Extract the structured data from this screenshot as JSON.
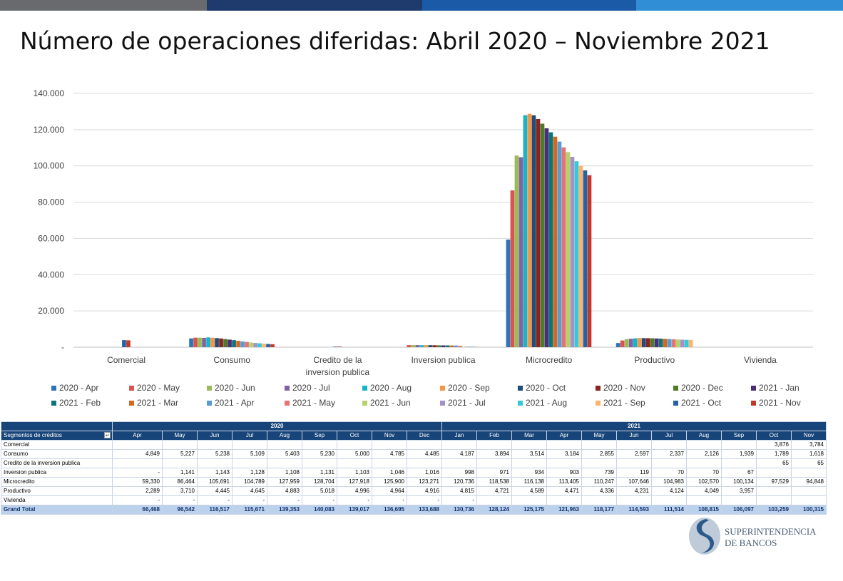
{
  "title": "Número de operaciones diferidas: Abril 2020 – Noviembre 2021",
  "topbar_colors": [
    "#686a6e",
    "#1f3a6d",
    "#1a5aa6",
    "#2f8ed6"
  ],
  "logo": {
    "line1": "SUPERINTENDENCIA",
    "line2": "DE BANCOS"
  },
  "chart_data": {
    "type": "bar",
    "categories": [
      "Comercial",
      "Consumo",
      "Credito de la inversion publica",
      "Inversion publica",
      "Microcredito",
      "Productivo",
      "Vivienda"
    ],
    "ylim": [
      0,
      140000
    ],
    "yticks": [
      "-",
      "20.000",
      "40.000",
      "60.000",
      "80.000",
      "100.000",
      "120.000",
      "140.000"
    ],
    "grid": true,
    "legend_position": "bottom",
    "series": [
      {
        "name": "2020 - Apr",
        "color": "#2e75b6",
        "values": [
          null,
          4849,
          null,
          null,
          59330,
          2289,
          null
        ]
      },
      {
        "name": "2020 - May",
        "color": "#d9534f",
        "values": [
          null,
          5227,
          null,
          1141,
          86464,
          3710,
          null
        ]
      },
      {
        "name": "2020 - Jun",
        "color": "#9bbb59",
        "values": [
          null,
          5238,
          null,
          1143,
          105691,
          4445,
          null
        ]
      },
      {
        "name": "2020 - Jul",
        "color": "#8064a2",
        "values": [
          null,
          5109,
          null,
          1128,
          104789,
          4645,
          null
        ]
      },
      {
        "name": "2020 - Aug",
        "color": "#17b3c6",
        "values": [
          null,
          5403,
          null,
          1108,
          127959,
          4883,
          null
        ]
      },
      {
        "name": "2020 - Sep",
        "color": "#f79646",
        "values": [
          null,
          5230,
          null,
          1131,
          128704,
          5018,
          null
        ]
      },
      {
        "name": "2020 - Oct",
        "color": "#1f4e79",
        "values": [
          null,
          5000,
          null,
          1103,
          127918,
          4996,
          null
        ]
      },
      {
        "name": "2020 - Nov",
        "color": "#8b2323",
        "values": [
          null,
          4785,
          null,
          1046,
          125900,
          4964,
          null
        ]
      },
      {
        "name": "2020 - Dec",
        "color": "#4f7a28",
        "values": [
          null,
          4485,
          null,
          1016,
          123271,
          4916,
          null
        ]
      },
      {
        "name": "2021 - Jan",
        "color": "#4b2e7a",
        "values": [
          null,
          4187,
          null,
          998,
          120736,
          4815,
          null
        ]
      },
      {
        "name": "2021 - Feb",
        "color": "#0e7479",
        "values": [
          null,
          3894,
          null,
          971,
          118538,
          4721,
          null
        ]
      },
      {
        "name": "2021 - Mar",
        "color": "#d2691e",
        "values": [
          null,
          3514,
          null,
          934,
          116138,
          4589,
          null
        ]
      },
      {
        "name": "2021 - Apr",
        "color": "#5b9bd5",
        "values": [
          null,
          3184,
          null,
          903,
          113405,
          4471,
          null
        ]
      },
      {
        "name": "2021 - May",
        "color": "#e57373",
        "values": [
          null,
          2855,
          null,
          739,
          110247,
          4336,
          null
        ]
      },
      {
        "name": "2021 - Jun",
        "color": "#b5d16c",
        "values": [
          null,
          2597,
          null,
          119,
          107646,
          4231,
          null
        ]
      },
      {
        "name": "2021 - Jul",
        "color": "#a491c6",
        "values": [
          null,
          2337,
          null,
          70,
          104983,
          4124,
          null
        ]
      },
      {
        "name": "2021 - Aug",
        "color": "#33cbd9",
        "values": [
          null,
          2126,
          null,
          70,
          102570,
          4049,
          null
        ]
      },
      {
        "name": "2021 - Sep",
        "color": "#fbb46d",
        "values": [
          null,
          1939,
          null,
          67,
          100134,
          3957,
          null
        ]
      },
      {
        "name": "2021 - Oct",
        "color": "#2563a6",
        "values": [
          3876,
          1789,
          65,
          null,
          97529,
          null,
          null
        ]
      },
      {
        "name": "2021 - Nov",
        "color": "#c0392b",
        "values": [
          3784,
          1618,
          65,
          null,
          94848,
          null,
          null
        ]
      }
    ]
  },
  "table": {
    "year_header": [
      "2020",
      "2021"
    ],
    "segment_header": "Segmentos de créditos",
    "filter_icon": "filter-dropdown-icon",
    "months": [
      "Apr",
      "May",
      "Jun",
      "Jul",
      "Aug",
      "Sep",
      "Oct",
      "Nov",
      "Dec",
      "Jan",
      "Feb",
      "Mar",
      "Apr",
      "May",
      "Jun",
      "Jul",
      "Aug",
      "Sep",
      "Oct",
      "Nov"
    ],
    "rows": [
      {
        "label": "Comercial",
        "cells": [
          "",
          "",
          "",
          "",
          "",
          "",
          "",
          "",
          "",
          "",
          "",
          "",
          "",
          "",
          "",
          "",
          "",
          "",
          "3,876",
          "3,784"
        ]
      },
      {
        "label": "Consumo",
        "cells": [
          "4,849",
          "5,227",
          "5,238",
          "5,109",
          "5,403",
          "5,230",
          "5,000",
          "4,785",
          "4,485",
          "4,187",
          "3,894",
          "3,514",
          "3,184",
          "2,855",
          "2,597",
          "2,337",
          "2,126",
          "1,939",
          "1,789",
          "1,618"
        ]
      },
      {
        "label": "Credito de la inversion publica",
        "cells": [
          "",
          "",
          "",
          "",
          "",
          "",
          "",
          "",
          "",
          "",
          "",
          "",
          "",
          "",
          "",
          "",
          "",
          "",
          "65",
          "65"
        ]
      },
      {
        "label": "Inversion publica",
        "cells": [
          "-",
          "1,141",
          "1,143",
          "1,128",
          "1,108",
          "1,131",
          "1,103",
          "1,046",
          "1,016",
          "998",
          "971",
          "934",
          "903",
          "739",
          "119",
          "70",
          "70",
          "67",
          "",
          ""
        ]
      },
      {
        "label": "Microcredito",
        "cells": [
          "59,330",
          "86,464",
          "105,691",
          "104,789",
          "127,959",
          "128,704",
          "127,918",
          "125,900",
          "123,271",
          "120,736",
          "118,538",
          "116,138",
          "113,405",
          "110,247",
          "107,646",
          "104,983",
          "102,570",
          "100,134",
          "97,529",
          "94,848"
        ]
      },
      {
        "label": "Productivo",
        "cells": [
          "2,289",
          "3,710",
          "4,445",
          "4,645",
          "4,883",
          "5,018",
          "4,996",
          "4,964",
          "4,916",
          "4,815",
          "4,721",
          "4,589",
          "4,471",
          "4,336",
          "4,231",
          "4,124",
          "4,049",
          "3,957",
          "",
          ""
        ]
      },
      {
        "label": "Vivienda",
        "cells": [
          "-",
          "-",
          "-",
          "-",
          "-",
          "-",
          "-",
          "-",
          "-",
          "-",
          "",
          "",
          "",
          "",
          "",
          "",
          "",
          "",
          "",
          ""
        ]
      }
    ],
    "total": {
      "label": "Grand Total",
      "cells": [
        "66,468",
        "96,542",
        "116,517",
        "115,671",
        "139,353",
        "140,083",
        "139,017",
        "136,695",
        "133,688",
        "130,736",
        "128,124",
        "125,175",
        "121,963",
        "118,177",
        "114,593",
        "111,514",
        "108,815",
        "106,097",
        "103,259",
        "100,315"
      ]
    }
  }
}
